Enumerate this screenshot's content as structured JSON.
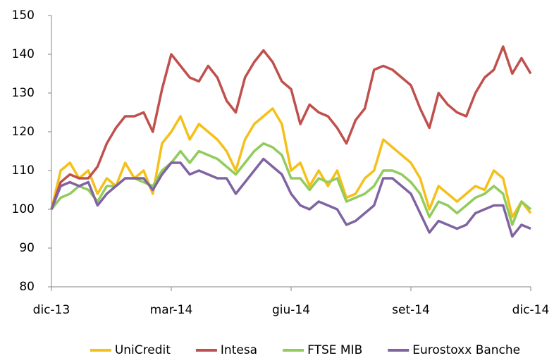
{
  "chart_data": {
    "type": "line",
    "categories": [
      "dic-13",
      null,
      null,
      null,
      null,
      null,
      null,
      null,
      null,
      null,
      null,
      null,
      null,
      "mar-14",
      null,
      null,
      null,
      null,
      null,
      null,
      null,
      null,
      null,
      null,
      null,
      null,
      "giu-14",
      null,
      null,
      null,
      null,
      null,
      null,
      null,
      null,
      null,
      null,
      null,
      null,
      "set-14",
      null,
      null,
      null,
      null,
      null,
      null,
      null,
      null,
      null,
      null,
      null,
      null,
      "dic-14"
    ],
    "series": [
      {
        "name": "UniCredit",
        "color": "#f5c01a",
        "values": [
          100,
          110,
          112,
          108,
          110,
          104,
          108,
          106,
          112,
          108,
          110,
          104,
          117,
          120,
          124,
          118,
          122,
          120,
          118,
          115,
          110,
          118,
          122,
          124,
          126,
          122,
          110,
          112,
          106,
          110,
          106,
          110,
          103,
          104,
          108,
          110,
          118,
          116,
          114,
          112,
          108,
          100,
          106,
          104,
          102,
          104,
          106,
          105,
          110,
          108,
          98,
          102,
          99
        ]
      },
      {
        "name": "Intesa",
        "color": "#c0504d",
        "values": [
          100,
          107,
          109,
          108,
          108,
          111,
          117,
          121,
          124,
          124,
          125,
          120,
          131,
          140,
          137,
          134,
          133,
          137,
          134,
          128,
          125,
          134,
          138,
          141,
          138,
          133,
          131,
          122,
          127,
          125,
          124,
          121,
          117,
          123,
          126,
          136,
          137,
          136,
          134,
          132,
          126,
          121,
          130,
          127,
          125,
          124,
          130,
          134,
          136,
          142,
          135,
          139,
          135
        ]
      },
      {
        "name": "FTSE MIB",
        "color": "#92cc5c",
        "values": [
          100,
          103,
          104,
          106,
          105,
          102,
          106,
          106,
          108,
          108,
          107,
          106,
          110,
          112,
          115,
          112,
          115,
          114,
          113,
          111,
          109,
          112,
          115,
          117,
          116,
          114,
          108,
          108,
          105,
          108,
          107,
          108,
          102,
          103,
          104,
          106,
          110,
          110,
          109,
          107,
          104,
          98,
          102,
          101,
          99,
          101,
          103,
          104,
          106,
          104,
          96,
          102,
          100
        ]
      },
      {
        "name": "Eurostoxx Banche",
        "color": "#8064a2",
        "values": [
          100,
          106,
          107,
          106,
          107,
          101,
          104,
          106,
          108,
          108,
          108,
          105,
          109,
          112,
          112,
          109,
          110,
          109,
          108,
          108,
          104,
          107,
          110,
          113,
          111,
          109,
          104,
          101,
          100,
          102,
          101,
          100,
          96,
          97,
          99,
          101,
          108,
          108,
          106,
          104,
          99,
          94,
          97,
          96,
          95,
          96,
          99,
          100,
          101,
          101,
          93,
          96,
          95
        ]
      }
    ],
    "ylim": [
      80,
      150
    ],
    "yticks": [
      80,
      90,
      100,
      110,
      120,
      130,
      140,
      150
    ],
    "grid": false,
    "legend": "bottom"
  }
}
